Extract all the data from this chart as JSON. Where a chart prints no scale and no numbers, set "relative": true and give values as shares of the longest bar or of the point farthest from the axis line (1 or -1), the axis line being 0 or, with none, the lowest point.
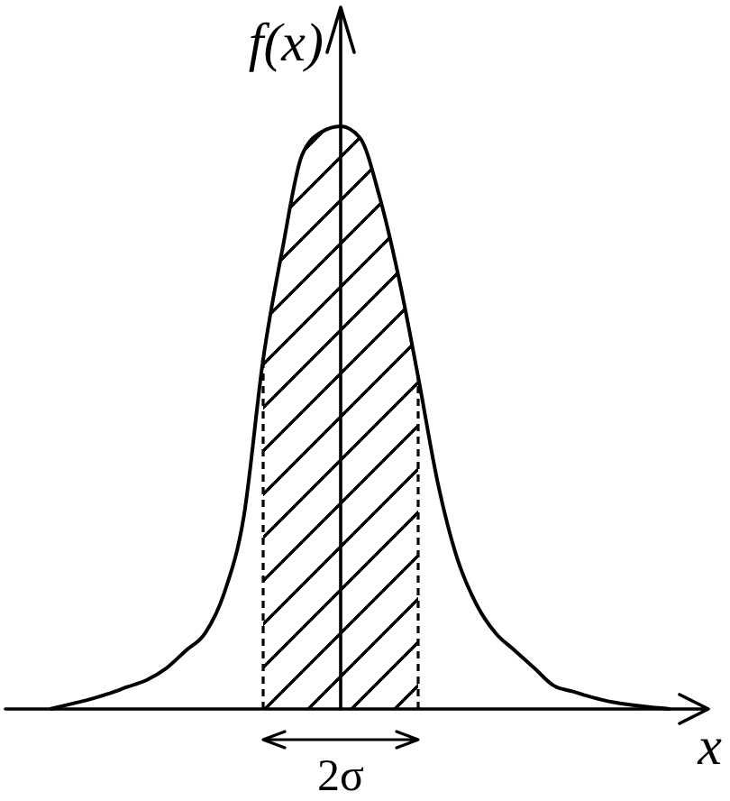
{
  "chart_data": {
    "type": "line",
    "xlabel": "x",
    "ylabel": "f(x)",
    "relative": true,
    "categories": [
      null,
      null,
      null,
      null,
      null,
      null,
      null,
      null,
      null,
      null,
      null,
      null,
      null,
      null,
      null,
      null,
      null,
      null,
      null,
      null,
      null,
      null,
      null,
      null,
      null,
      null,
      null,
      null,
      null,
      null,
      null,
      null,
      null
    ],
    "series": [
      {
        "color": "#000000",
        "values": [
          0,
          0.008,
          0.016,
          0.026,
          0.038,
          0.05,
          0.07,
          0.1,
          0.13,
          0.2,
          0.33,
          0.6,
          0.79,
          0.95,
          0.99,
          1,
          0.98,
          0.88,
          0.74,
          0.57,
          0.39,
          0.26,
          0.18,
          0.13,
          0.1,
          0.07,
          0.04,
          0.03,
          0.02,
          0.012,
          0.007,
          0.003,
          0
        ]
      },
      {
        "type": "area",
        "color": "#000000",
        "values": [
          null,
          null,
          null,
          null,
          null,
          null,
          null,
          null,
          null,
          null,
          null,
          0.6,
          0.79,
          0.95,
          0.99,
          1,
          0.98,
          0.88,
          0.74,
          0.57,
          null,
          null,
          null,
          null,
          null,
          null,
          null,
          null,
          null,
          null,
          null,
          null,
          null
        ]
      }
    ],
    "annotations": [
      "2σ"
    ]
  }
}
